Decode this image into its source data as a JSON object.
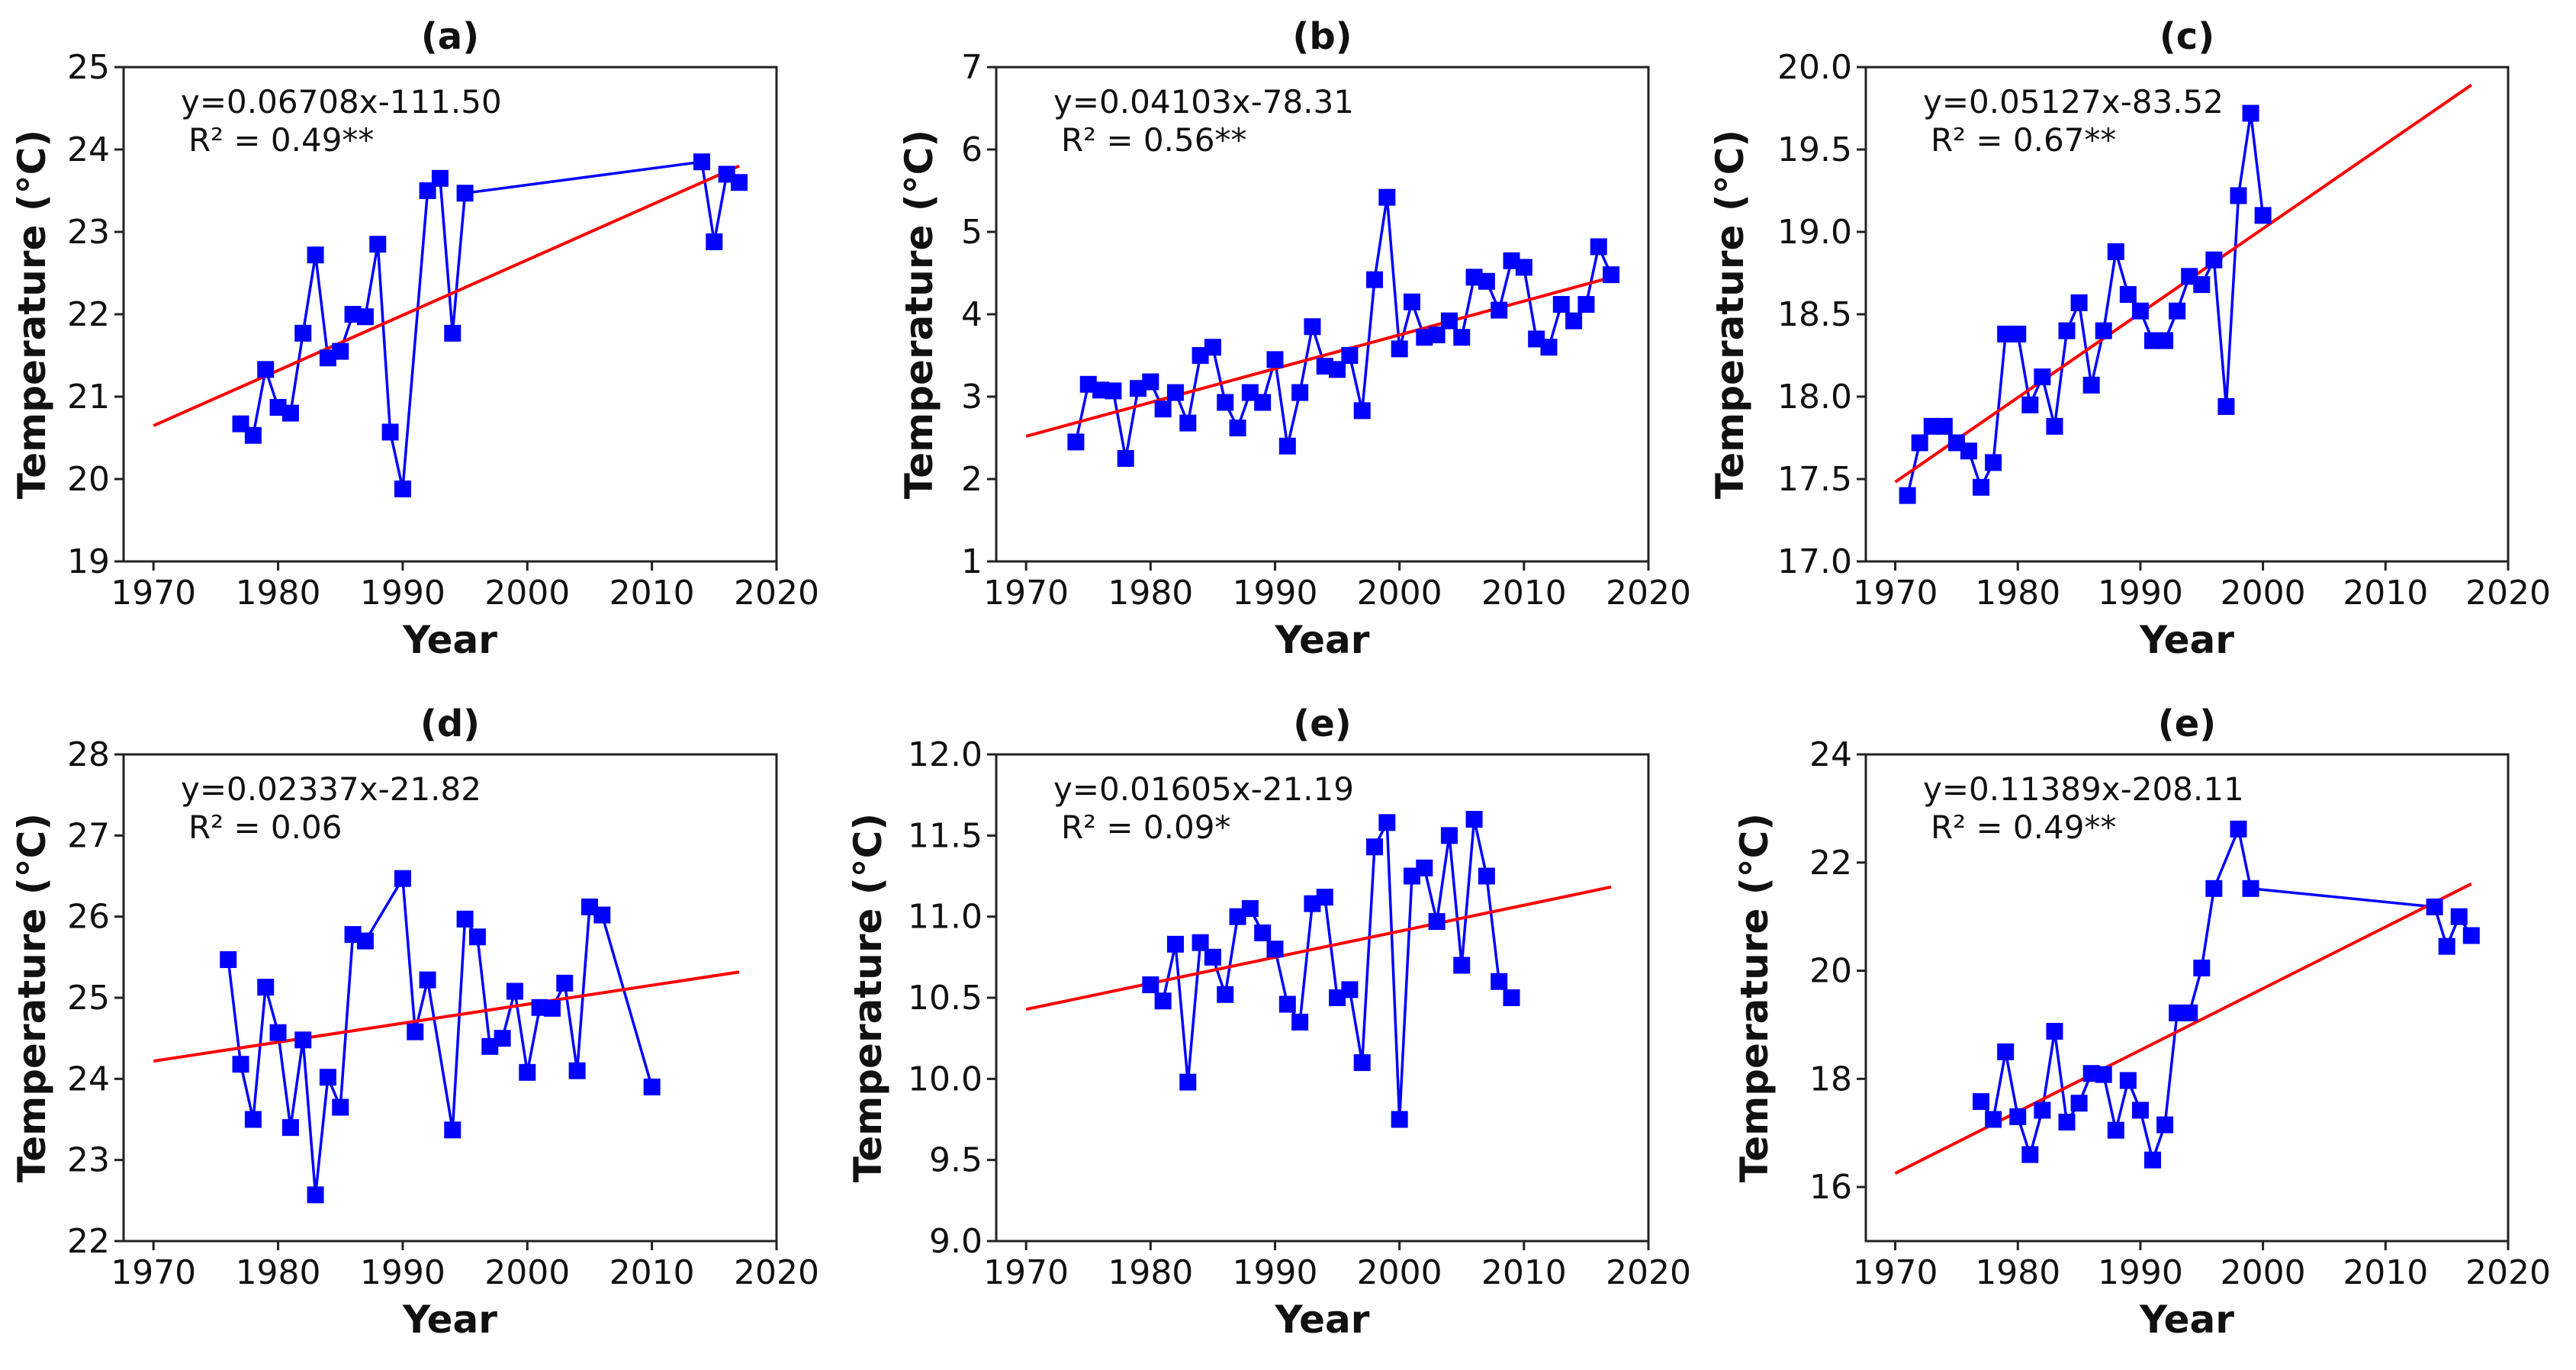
{
  "colors": {
    "series": "#0000ff",
    "trend": "#ff0000",
    "axis": "#222222"
  },
  "chart_data": [
    {
      "type": "line",
      "title": "(a)",
      "xlabel": "Year",
      "ylabel": "Temperature (°C)",
      "equation": "y=0.06708x-111.50",
      "r2_label": "R² = 0.49**",
      "trend": {
        "slope": 0.06708,
        "intercept": -111.5,
        "x_range": [
          1970,
          2017
        ]
      },
      "xlim": [
        1967.6,
        2020
      ],
      "ylim": [
        19,
        25
      ],
      "xticks": [
        "1970",
        "1980",
        "1990",
        "2000",
        "2010",
        "2020"
      ],
      "yticks": [
        "19",
        "20",
        "21",
        "22",
        "23",
        "24",
        "25"
      ],
      "x": [
        1977,
        1978,
        1979,
        1980,
        1981,
        1982,
        1983,
        1984,
        1985,
        1986,
        1987,
        1988,
        1989,
        1990,
        1992,
        1993,
        1994,
        1995,
        2014,
        2015,
        2016,
        2017
      ],
      "y": [
        20.67,
        20.53,
        21.33,
        20.87,
        20.8,
        21.77,
        22.72,
        21.47,
        21.55,
        22.0,
        21.97,
        22.85,
        20.57,
        19.88,
        23.5,
        23.65,
        21.77,
        23.47,
        23.85,
        22.88,
        23.7,
        23.6
      ]
    },
    {
      "type": "line",
      "title": "(b)",
      "xlabel": "Year",
      "ylabel": "Temperature (°C)",
      "equation": "y=0.04103x-78.31",
      "r2_label": "R² = 0.56**",
      "trend": {
        "slope": 0.04103,
        "intercept": -78.31,
        "x_range": [
          1970,
          2017
        ]
      },
      "xlim": [
        1967.6,
        2020
      ],
      "ylim": [
        1,
        7
      ],
      "xticks": [
        "1970",
        "1980",
        "1990",
        "2000",
        "2010",
        "2020"
      ],
      "yticks": [
        "1",
        "2",
        "3",
        "4",
        "5",
        "6",
        "7"
      ],
      "x": [
        1974,
        1975,
        1976,
        1977,
        1978,
        1979,
        1980,
        1981,
        1982,
        1983,
        1984,
        1985,
        1986,
        1987,
        1988,
        1989,
        1990,
        1991,
        1992,
        1993,
        1994,
        1995,
        1996,
        1997,
        1998,
        1999,
        2000,
        2001,
        2002,
        2003,
        2004,
        2005,
        2006,
        2007,
        2008,
        2009,
        2010,
        2011,
        2012,
        2013,
        2014,
        2015,
        2016,
        2017
      ],
      "y": [
        2.45,
        3.15,
        3.08,
        3.07,
        2.25,
        3.1,
        3.18,
        2.85,
        3.05,
        2.68,
        3.5,
        3.6,
        2.93,
        2.62,
        3.05,
        2.93,
        3.45,
        2.4,
        3.05,
        3.85,
        3.37,
        3.33,
        3.5,
        2.83,
        4.42,
        5.42,
        3.58,
        4.15,
        3.72,
        3.75,
        3.92,
        3.72,
        4.45,
        4.4,
        4.05,
        4.65,
        4.57,
        3.7,
        3.6,
        4.12,
        3.92,
        4.12,
        4.82,
        4.48
      ]
    },
    {
      "type": "line",
      "title": "(c)",
      "xlabel": "Year",
      "ylabel": "Temperature (°C)",
      "equation": "y=0.05127x-83.52",
      "r2_label": "R² = 0.67**",
      "trend": {
        "slope": 0.05127,
        "intercept": -83.52,
        "x_range": [
          1970,
          2017
        ]
      },
      "xlim": [
        1967.6,
        2020
      ],
      "ylim": [
        17,
        20
      ],
      "xticks": [
        "1970",
        "1980",
        "1990",
        "2000",
        "2010",
        "2020"
      ],
      "yticks": [
        "17.0",
        "17.5",
        "18.0",
        "18.5",
        "19.0",
        "19.5",
        "20.0"
      ],
      "x": [
        1971,
        1972,
        1973,
        1974,
        1975,
        1976,
        1977,
        1978,
        1979,
        1980,
        1981,
        1982,
        1983,
        1984,
        1985,
        1986,
        1987,
        1988,
        1989,
        1990,
        1991,
        1992,
        1993,
        1994,
        1995,
        1996,
        1997,
        1998,
        1999,
        2000
      ],
      "y": [
        17.4,
        17.72,
        17.82,
        17.82,
        17.72,
        17.67,
        17.45,
        17.6,
        18.38,
        18.38,
        17.95,
        18.12,
        17.82,
        18.4,
        18.57,
        18.07,
        18.4,
        18.88,
        18.62,
        18.52,
        18.34,
        18.34,
        18.52,
        18.73,
        18.68,
        18.83,
        17.94,
        19.22,
        19.72,
        19.1
      ]
    },
    {
      "type": "line",
      "title": "(d)",
      "xlabel": "Year",
      "ylabel": "Temperature (°C)",
      "equation": "y=0.02337x-21.82",
      "r2_label": "R² = 0.06",
      "trend": {
        "slope": 0.02337,
        "intercept": -21.82,
        "x_range": [
          1970,
          2017
        ]
      },
      "xlim": [
        1967.6,
        2020
      ],
      "ylim": [
        22,
        28
      ],
      "xticks": [
        "1970",
        "1980",
        "1990",
        "2000",
        "2010",
        "2020"
      ],
      "yticks": [
        "22",
        "23",
        "24",
        "25",
        "26",
        "27",
        "28"
      ],
      "x": [
        1976,
        1977,
        1978,
        1979,
        1980,
        1981,
        1982,
        1983,
        1984,
        1985,
        1986,
        1987,
        1990,
        1991,
        1992,
        1994,
        1995,
        1996,
        1997,
        1998,
        1999,
        2000,
        2001,
        2002,
        2003,
        2004,
        2005,
        2006,
        2010
      ],
      "y": [
        25.47,
        24.18,
        23.5,
        25.13,
        24.57,
        23.4,
        24.48,
        22.57,
        24.02,
        23.65,
        25.78,
        25.7,
        26.47,
        24.58,
        25.22,
        23.37,
        25.97,
        25.75,
        24.4,
        24.5,
        25.08,
        24.08,
        24.88,
        24.87,
        25.18,
        24.1,
        26.12,
        26.02,
        23.9
      ]
    },
    {
      "type": "line",
      "title": "(e)",
      "xlabel": "Year",
      "ylabel": "Temperature (°C)",
      "equation": "y=0.01605x-21.19",
      "r2_label": "R² = 0.09*",
      "trend": {
        "slope": 0.01605,
        "intercept": -21.19,
        "x_range": [
          1970,
          2017
        ]
      },
      "xlim": [
        1967.6,
        2020
      ],
      "ylim": [
        9,
        12
      ],
      "xticks": [
        "1970",
        "1980",
        "1990",
        "2000",
        "2010",
        "2020"
      ],
      "yticks": [
        "9.0",
        "9.5",
        "10.0",
        "10.5",
        "11.0",
        "11.5",
        "12.0"
      ],
      "x": [
        1980,
        1981,
        1982,
        1983,
        1984,
        1985,
        1986,
        1987,
        1988,
        1989,
        1990,
        1991,
        1992,
        1993,
        1994,
        1995,
        1996,
        1997,
        1998,
        1999,
        2000,
        2001,
        2002,
        2003,
        2004,
        2005,
        2006,
        2007,
        2008,
        2009
      ],
      "y": [
        10.58,
        10.48,
        10.83,
        9.98,
        10.84,
        10.75,
        10.52,
        11.0,
        11.05,
        10.9,
        10.8,
        10.46,
        10.35,
        11.08,
        11.12,
        10.5,
        10.55,
        10.1,
        11.43,
        11.58,
        9.75,
        11.25,
        11.3,
        10.97,
        11.5,
        10.7,
        11.6,
        11.25,
        10.6,
        10.5
      ]
    },
    {
      "type": "line",
      "title": "(e)",
      "xlabel": "Year",
      "ylabel": "Temperature (°C)",
      "equation": "y=0.11389x-208.11",
      "r2_label": "R² = 0.49**",
      "trend": {
        "slope": 0.11389,
        "intercept": -208.11,
        "x_range": [
          1970,
          2017
        ]
      },
      "xlim": [
        1967.6,
        2020
      ],
      "ylim": [
        15,
        24
      ],
      "xticks": [
        "1970",
        "1980",
        "1990",
        "2000",
        "2010",
        "2020"
      ],
      "yticks": [
        "16",
        "18",
        "20",
        "22",
        "24"
      ],
      "ytick_values": [
        16,
        18,
        20,
        22,
        24
      ],
      "x": [
        1977,
        1978,
        1979,
        1980,
        1981,
        1982,
        1983,
        1984,
        1985,
        1986,
        1987,
        1988,
        1989,
        1990,
        1991,
        1992,
        1993,
        1994,
        1995,
        1996,
        1998,
        1999,
        2014,
        2015,
        2016,
        2017
      ],
      "y": [
        17.58,
        17.25,
        18.5,
        17.3,
        16.6,
        17.42,
        18.88,
        17.2,
        17.55,
        18.1,
        18.08,
        17.05,
        17.97,
        17.42,
        16.5,
        17.15,
        19.22,
        19.22,
        20.05,
        21.52,
        22.62,
        21.52,
        21.18,
        20.45,
        21.0,
        20.65
      ]
    }
  ]
}
